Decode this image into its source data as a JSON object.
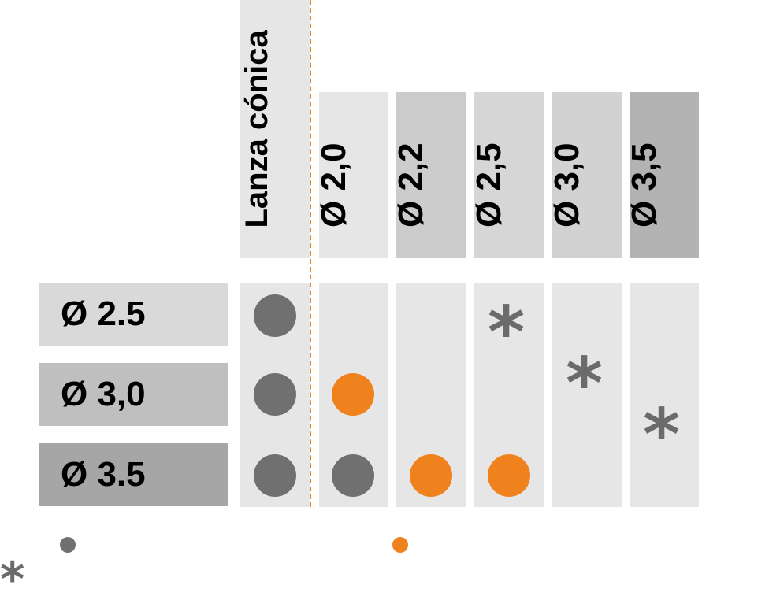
{
  "header": {
    "top_right_faint": "",
    "left_faint_lines": [
      "",
      "",
      ""
    ]
  },
  "first_column": {
    "label": "Lanza cónica"
  },
  "columns": [
    {
      "label": "Ø 2,0",
      "color": "#e6e6e6"
    },
    {
      "label": "Ø 2,2",
      "color": "#cccccc"
    },
    {
      "label": "Ø 2,5",
      "color": "#d6d6d6"
    },
    {
      "label": "Ø 3,0",
      "color": "#d2d2d2"
    },
    {
      "label": "Ø 3,5",
      "color": "#b3b3b3"
    }
  ],
  "rows": [
    {
      "label": "Ø 2.5",
      "color": "#d9d9d9"
    },
    {
      "label": "Ø 3,0",
      "color": "#bfbfbf"
    },
    {
      "label": "Ø 3.5",
      "color": "#a6a6a6"
    }
  ],
  "markers": {
    "gray_color": "#707070",
    "orange_color": "#f0821e",
    "star_symbol": "*"
  },
  "legend": {
    "gray_text": "",
    "orange_text": "",
    "star_symbol": "*",
    "star_text": ""
  }
}
